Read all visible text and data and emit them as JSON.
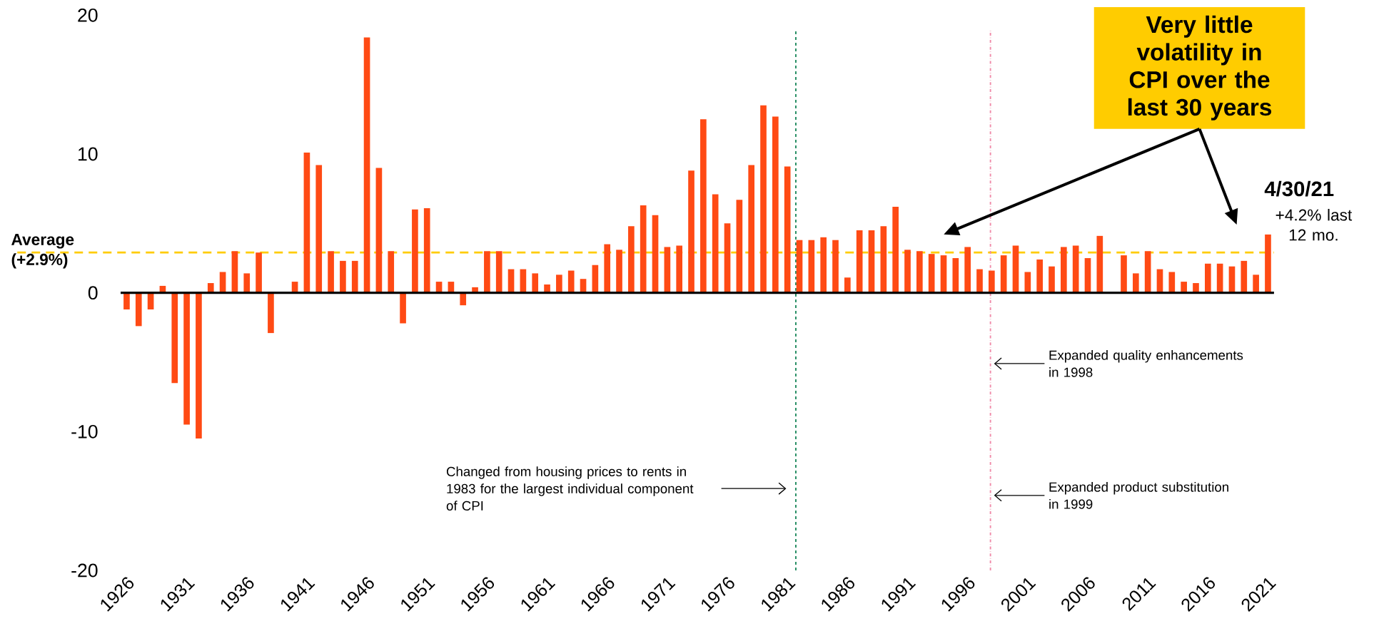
{
  "chart_data": {
    "type": "bar",
    "x": [
      1926,
      1927,
      1928,
      1929,
      1930,
      1931,
      1932,
      1933,
      1934,
      1935,
      1936,
      1937,
      1938,
      1939,
      1940,
      1941,
      1942,
      1943,
      1944,
      1945,
      1946,
      1947,
      1948,
      1949,
      1950,
      1951,
      1952,
      1953,
      1954,
      1955,
      1956,
      1957,
      1958,
      1959,
      1960,
      1961,
      1962,
      1963,
      1964,
      1965,
      1966,
      1967,
      1968,
      1969,
      1970,
      1971,
      1972,
      1973,
      1974,
      1975,
      1976,
      1977,
      1978,
      1979,
      1980,
      1981,
      1982,
      1983,
      1984,
      1985,
      1986,
      1987,
      1988,
      1989,
      1990,
      1991,
      1992,
      1993,
      1994,
      1995,
      1996,
      1997,
      1998,
      1999,
      2000,
      2001,
      2002,
      2003,
      2004,
      2005,
      2006,
      2007,
      2008,
      2009,
      2010,
      2011,
      2012,
      2013,
      2014,
      2015,
      2016,
      2017,
      2018,
      2019,
      2020,
      2021
    ],
    "values": [
      -1.2,
      -2.4,
      -1.2,
      0.5,
      -6.5,
      -9.5,
      -10.5,
      0.7,
      1.5,
      3.0,
      1.4,
      2.9,
      -2.9,
      0,
      0.8,
      10.1,
      9.2,
      3.0,
      2.3,
      2.3,
      18.4,
      9.0,
      3.0,
      -2.2,
      6.0,
      6.1,
      0.8,
      0.8,
      -0.9,
      0.4,
      3.0,
      3.0,
      1.7,
      1.7,
      1.4,
      0.6,
      1.3,
      1.6,
      1.0,
      2.0,
      3.5,
      3.1,
      4.8,
      6.3,
      5.6,
      3.3,
      3.4,
      8.8,
      12.5,
      7.1,
      5.0,
      6.7,
      9.2,
      13.5,
      12.7,
      9.1,
      3.8,
      3.8,
      4.0,
      3.8,
      1.1,
      4.5,
      4.5,
      4.8,
      6.2,
      3.1,
      3.0,
      2.8,
      2.7,
      2.5,
      3.3,
      1.7,
      1.6,
      2.7,
      3.4,
      1.5,
      2.4,
      1.9,
      3.3,
      3.4,
      2.5,
      4.1,
      null,
      2.7,
      1.4,
      3.0,
      1.7,
      1.5,
      0.8,
      0.7,
      2.1,
      2.1,
      1.9,
      2.3,
      1.3,
      4.2
    ],
    "color": "#ff4a14",
    "xlim": [
      1925.5,
      2021.5
    ],
    "xticks": [
      1926,
      1931,
      1936,
      1941,
      1946,
      1951,
      1956,
      1961,
      1966,
      1971,
      1976,
      1981,
      1986,
      1991,
      1996,
      2001,
      2006,
      2011,
      2016,
      2021
    ],
    "ylim": [
      -20,
      20
    ],
    "yticks": [
      -20,
      -10,
      0,
      10,
      20
    ],
    "ref_lines": [
      {
        "axis": "y",
        "value": 2.9,
        "label": "Average (+2.9%)",
        "color": "#ffcc00",
        "line_style": "dashed"
      },
      {
        "axis": "x",
        "value": 1981.7,
        "color": "#1f8a5e",
        "line_style": "dashed"
      },
      {
        "axis": "x",
        "value": 1997.9,
        "color": "#f08aa8",
        "line_style": "dashdot"
      }
    ],
    "annotations": [
      "Changed from housing prices to rents in 1983 for the largest individual component of CPI",
      "Expanded quality enhancements in 1998",
      "Expanded product substitution in 1999",
      "4/30/21",
      "+4.2% last 12 mo.",
      "Very little volatility in CPI over the last 30 years"
    ]
  }
}
